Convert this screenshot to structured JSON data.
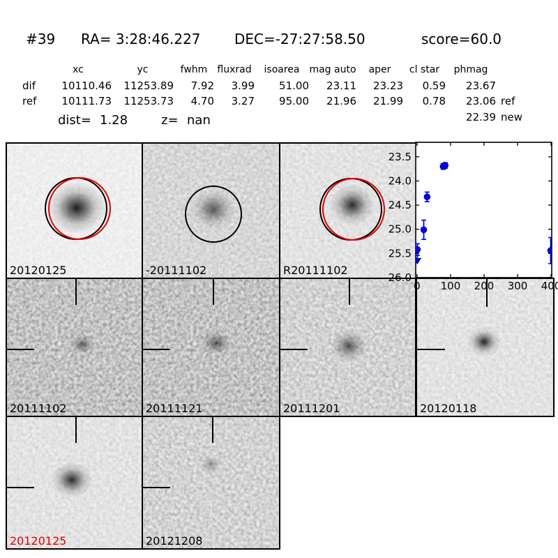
{
  "header": {
    "object_id": "#39",
    "ra": "RA= 3:28:46.227",
    "dec": "DEC=-27:27:58.50",
    "score": "score=60.0"
  },
  "measurements": {
    "columns": [
      "xc",
      "yc",
      "fwhm",
      "fluxrad",
      "isoarea",
      "mag auto",
      "aper",
      "cl star",
      "phmag"
    ],
    "rows": [
      {
        "label": "dif",
        "values": [
          "10110.46",
          "11253.89",
          "7.92",
          "3.99",
          "51.00",
          "23.11",
          "23.23",
          "0.59",
          "23.67"
        ],
        "phmag_suffix": ""
      },
      {
        "label": "ref",
        "values": [
          "10111.73",
          "11253.73",
          "4.70",
          "3.27",
          "95.00",
          "21.96",
          "21.99",
          "0.78",
          "23.06"
        ],
        "phmag_suffix": "ref"
      }
    ],
    "extra_phmag": {
      "value": "22.39",
      "suffix": "new"
    },
    "dist_label": "dist=",
    "dist_value": "1.28",
    "z_label": "z=",
    "z_value": "nan"
  },
  "cutouts": {
    "items": [
      {
        "label": "20120125",
        "label_color": "#000000"
      },
      {
        "label": "-20111102",
        "label_color": "#000000"
      },
      {
        "label": "R20111102",
        "label_color": "#000000"
      },
      {
        "label": "20111102",
        "label_color": "#000000"
      },
      {
        "label": "20111121",
        "label_color": "#000000"
      },
      {
        "label": "20111201",
        "label_color": "#000000"
      },
      {
        "label": "20120118",
        "label_color": "#000000"
      },
      {
        "label": "20120125",
        "label_color": "#e60000"
      },
      {
        "label": "20121208",
        "label_color": "#000000"
      }
    ]
  },
  "chart_data": {
    "type": "scatter",
    "title": "",
    "xlabel": "",
    "ylabel": "",
    "x_ticks": [
      0,
      100,
      200,
      300,
      400
    ],
    "x_tick_labels": [
      "0",
      "100",
      "200",
      "300",
      "400"
    ],
    "y_ticks": [
      23.5,
      24.0,
      24.5,
      25.0,
      25.5,
      26.0
    ],
    "y_tick_labels": [
      "23.5",
      "24.0",
      "24.5",
      "25.0",
      "25.5",
      "26.0"
    ],
    "xlim": [
      -4,
      402
    ],
    "ylim": [
      26.0,
      23.2
    ],
    "y_axis_inverted": true,
    "grid": false,
    "legend_position": "none",
    "marker_color": "#0000ee",
    "marker_edge_color": "#000099",
    "points": [
      {
        "x": 1,
        "y": 25.42,
        "err": 0.12
      },
      {
        "x": 20,
        "y": 25.01,
        "err": 0.2
      },
      {
        "x": 30,
        "y": 24.33,
        "err": 0.1
      },
      {
        "x": 78,
        "y": 23.7,
        "err": 0.06
      },
      {
        "x": 84,
        "y": 23.68,
        "err": 0.06
      },
      {
        "x": 399,
        "y": 25.44,
        "err": 0.27
      }
    ],
    "upper_limits": [
      {
        "x": 1,
        "y": 25.63
      }
    ]
  }
}
